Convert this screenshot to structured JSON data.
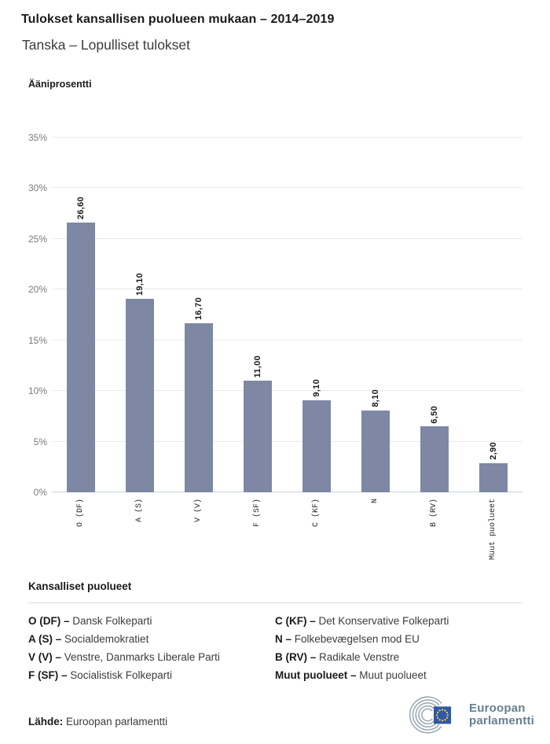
{
  "header": {
    "title": "Tulokset kansallisen puolueen mukaan – 2014–2019",
    "subtitle": "Tanska – Lopulliset tulokset"
  },
  "chart_data": {
    "type": "bar",
    "title": "Tulokset kansallisen puolueen mukaan – 2014–2019",
    "subtitle": "Tanska – Lopulliset tulokset",
    "ylabel": "Ääniprosentti",
    "xlabel": "",
    "ylim": [
      0,
      37.3
    ],
    "yticks": [
      0,
      5,
      10,
      15,
      20,
      25,
      30,
      35
    ],
    "ytick_suffix": "%",
    "grid": true,
    "bar_color": "#7e88a5",
    "categories": [
      "O (DF)",
      "A (S)",
      "V (V)",
      "F (SF)",
      "C (KF)",
      "N",
      "B (RV)",
      "Muut puolueet"
    ],
    "values": [
      26.6,
      19.1,
      16.7,
      11.0,
      9.1,
      8.1,
      6.5,
      2.9
    ],
    "value_labels": [
      "26,60",
      "19,10",
      "16,70",
      "11,00",
      "9,10",
      "8,10",
      "6,50",
      "2,90"
    ]
  },
  "legend": {
    "heading": "Kansalliset puolueet",
    "items_left": [
      {
        "abbr": "O (DF) –",
        "name": "Dansk Folkeparti"
      },
      {
        "abbr": "A (S) –",
        "name": "Socialdemokratiet"
      },
      {
        "abbr": "V (V) –",
        "name": "Venstre, Danmarks Liberale Parti"
      },
      {
        "abbr": "F (SF) –",
        "name": "Socialistisk Folkeparti"
      }
    ],
    "items_right": [
      {
        "abbr": "C (KF) –",
        "name": "Det Konservative Folkeparti"
      },
      {
        "abbr": "N –",
        "name": "Folkebevægelsen mod EU"
      },
      {
        "abbr": "B (RV) –",
        "name": "Radikale Venstre"
      },
      {
        "abbr": "Muut puolueet –",
        "name": "Muut puolueet"
      }
    ]
  },
  "footer": {
    "source_label": "Lähde:",
    "source_value": "Euroopan parlamentti",
    "logo_text_line1": "Euroopan",
    "logo_text_line2": "parlamentti"
  },
  "colors": {
    "bar": "#7e88a5",
    "gridline": "#eaeaea",
    "axis_line": "#ccd6e0",
    "tick_label": "#7a7a7a",
    "text_dark": "#1a1a1a",
    "text_body": "#3c3c3c",
    "logo_blue": "#3157a7",
    "logo_star": "#f0d43a",
    "logo_arc": "#9aa7b1",
    "logo_text": "#66808f"
  }
}
